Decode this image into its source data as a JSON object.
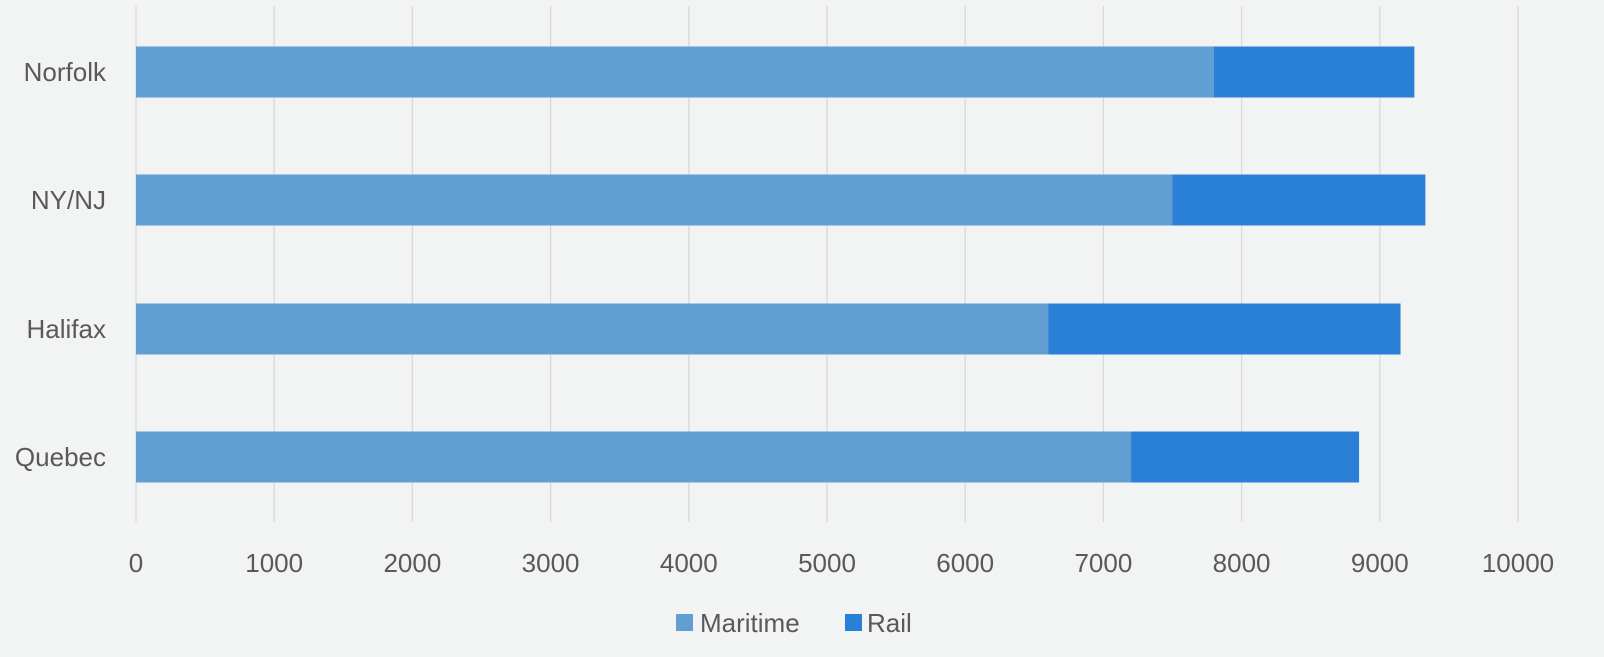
{
  "chart_data": {
    "type": "bar",
    "orientation": "horizontal",
    "stacked": true,
    "categories": [
      "Norfolk",
      "NY/NJ",
      "Halifax",
      "Quebec"
    ],
    "series": [
      {
        "name": "Maritime",
        "values": [
          7800,
          7500,
          6600,
          7200
        ],
        "color": "#619ed2"
      },
      {
        "name": "Rail",
        "values": [
          1450,
          1830,
          2550,
          1650
        ],
        "color": "#2a7fd7"
      }
    ],
    "xlim": [
      0,
      10000
    ],
    "x_ticks": [
      "0",
      "1000",
      "2000",
      "3000",
      "4000",
      "5000",
      "6000",
      "7000",
      "8000",
      "9000",
      "10000"
    ],
    "grid": true,
    "legend_position": "bottom",
    "colors": {
      "background": "#f2f3f3",
      "grid": "#d9d9d9",
      "text": "#595959"
    }
  }
}
